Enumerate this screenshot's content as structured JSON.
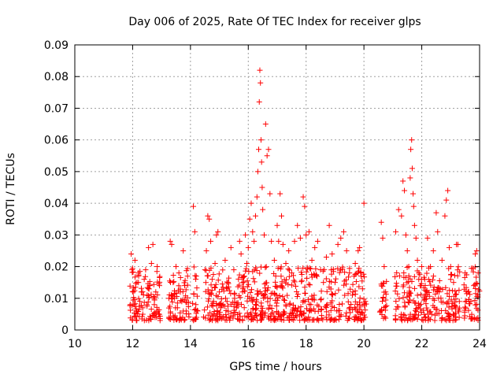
{
  "chart_data": {
    "type": "scatter",
    "title": "Day 006 of 2025, Rate Of TEC Index for receiver glps",
    "xlabel": "GPS time / hours",
    "ylabel": "ROTI / TECUs",
    "xlim": [
      10,
      24
    ],
    "ylim": [
      0,
      0.09
    ],
    "xticks": [
      10,
      12,
      14,
      16,
      18,
      20,
      22,
      24
    ],
    "yticks": [
      0,
      0.01,
      0.02,
      0.03,
      0.04,
      0.05,
      0.06,
      0.07,
      0.08,
      0.09
    ],
    "grid": true,
    "marker": "+",
    "marker_color": "#ff0000",
    "series": [
      {
        "name": "ROTI",
        "points": [
          [
            11.95,
            0.024
          ],
          [
            11.98,
            0.019
          ],
          [
            12.02,
            0.012
          ],
          [
            12.05,
            0.008
          ],
          [
            12.08,
            0.022
          ],
          [
            12.12,
            0.006
          ],
          [
            12.15,
            0.015
          ],
          [
            12.2,
            0.018
          ],
          [
            12.25,
            0.009
          ],
          [
            12.3,
            0.012
          ],
          [
            12.35,
            0.007
          ],
          [
            12.4,
            0.016
          ],
          [
            12.45,
            0.019
          ],
          [
            12.5,
            0.011
          ],
          [
            12.55,
            0.026
          ],
          [
            12.6,
            0.014
          ],
          [
            12.65,
            0.021
          ],
          [
            12.7,
            0.027
          ],
          [
            12.75,
            0.008
          ],
          [
            12.8,
            0.012
          ],
          [
            12.85,
            0.02
          ],
          [
            12.9,
            0.005
          ],
          [
            13.3,
            0.028
          ],
          [
            13.35,
            0.027
          ],
          [
            13.4,
            0.015
          ],
          [
            13.45,
            0.01
          ],
          [
            13.5,
            0.02
          ],
          [
            13.55,
            0.007
          ],
          [
            13.6,
            0.018
          ],
          [
            13.65,
            0.012
          ],
          [
            13.7,
            0.009
          ],
          [
            13.75,
            0.025
          ],
          [
            13.8,
            0.014
          ],
          [
            13.85,
            0.006
          ],
          [
            13.9,
            0.017
          ],
          [
            14.1,
            0.039
          ],
          [
            14.15,
            0.031
          ],
          [
            14.2,
            0.017
          ],
          [
            14.25,
            0.006
          ],
          [
            14.5,
            0.019
          ],
          [
            14.55,
            0.025
          ],
          [
            14.6,
            0.036
          ],
          [
            14.65,
            0.035
          ],
          [
            14.7,
            0.028
          ],
          [
            14.75,
            0.016
          ],
          [
            14.8,
            0.009
          ],
          [
            14.85,
            0.021
          ],
          [
            14.9,
            0.03
          ],
          [
            14.95,
            0.031
          ],
          [
            15.0,
            0.012
          ],
          [
            15.05,
            0.007
          ],
          [
            15.2,
            0.022
          ],
          [
            15.3,
            0.015
          ],
          [
            15.4,
            0.026
          ],
          [
            15.5,
            0.019
          ],
          [
            15.6,
            0.008
          ],
          [
            15.7,
            0.028
          ],
          [
            15.75,
            0.024
          ],
          [
            15.8,
            0.012
          ],
          [
            15.9,
            0.03
          ],
          [
            15.95,
            0.021
          ],
          [
            16.0,
            0.026
          ],
          [
            16.05,
            0.035
          ],
          [
            16.1,
            0.04
          ],
          [
            16.15,
            0.031
          ],
          [
            16.2,
            0.028
          ],
          [
            16.25,
            0.036
          ],
          [
            16.3,
            0.042
          ],
          [
            16.33,
            0.05
          ],
          [
            16.36,
            0.057
          ],
          [
            16.38,
            0.072
          ],
          [
            16.4,
            0.082
          ],
          [
            16.42,
            0.078
          ],
          [
            16.44,
            0.06
          ],
          [
            16.46,
            0.053
          ],
          [
            16.48,
            0.045
          ],
          [
            16.5,
            0.038
          ],
          [
            16.55,
            0.03
          ],
          [
            16.6,
            0.065
          ],
          [
            16.65,
            0.055
          ],
          [
            16.7,
            0.057
          ],
          [
            16.75,
            0.043
          ],
          [
            16.8,
            0.028
          ],
          [
            16.9,
            0.022
          ],
          [
            16.95,
            0.017
          ],
          [
            17.0,
            0.033
          ],
          [
            17.05,
            0.028
          ],
          [
            17.1,
            0.043
          ],
          [
            17.15,
            0.036
          ],
          [
            17.2,
            0.027
          ],
          [
            17.3,
            0.021
          ],
          [
            17.4,
            0.025
          ],
          [
            17.5,
            0.018
          ],
          [
            17.6,
            0.028
          ],
          [
            17.7,
            0.033
          ],
          [
            17.8,
            0.029
          ],
          [
            17.9,
            0.042
          ],
          [
            17.95,
            0.039
          ],
          [
            18.0,
            0.03
          ],
          [
            18.1,
            0.031
          ],
          [
            18.2,
            0.022
          ],
          [
            18.3,
            0.026
          ],
          [
            18.4,
            0.028
          ],
          [
            18.5,
            0.019
          ],
          [
            18.6,
            0.015
          ],
          [
            18.7,
            0.023
          ],
          [
            18.8,
            0.033
          ],
          [
            18.9,
            0.024
          ],
          [
            19.0,
            0.015
          ],
          [
            19.1,
            0.027
          ],
          [
            19.2,
            0.029
          ],
          [
            19.3,
            0.031
          ],
          [
            19.4,
            0.025
          ],
          [
            19.5,
            0.018
          ],
          [
            19.6,
            0.011
          ],
          [
            19.7,
            0.021
          ],
          [
            19.8,
            0.025
          ],
          [
            19.85,
            0.026
          ],
          [
            19.9,
            0.017
          ],
          [
            19.95,
            0.013
          ],
          [
            20.0,
            0.04
          ],
          [
            20.05,
            0.009
          ],
          [
            20.6,
            0.034
          ],
          [
            20.65,
            0.029
          ],
          [
            20.7,
            0.02
          ],
          [
            20.75,
            0.012
          ],
          [
            21.1,
            0.031
          ],
          [
            21.2,
            0.038
          ],
          [
            21.3,
            0.036
          ],
          [
            21.35,
            0.047
          ],
          [
            21.4,
            0.044
          ],
          [
            21.45,
            0.03
          ],
          [
            21.5,
            0.025
          ],
          [
            21.55,
            0.02
          ],
          [
            21.6,
            0.048
          ],
          [
            21.62,
            0.057
          ],
          [
            21.65,
            0.06
          ],
          [
            21.67,
            0.051
          ],
          [
            21.7,
            0.043
          ],
          [
            21.72,
            0.039
          ],
          [
            21.75,
            0.033
          ],
          [
            21.8,
            0.029
          ],
          [
            21.85,
            0.022
          ],
          [
            21.9,
            0.018
          ],
          [
            21.95,
            0.014
          ],
          [
            22.0,
            0.02
          ],
          [
            22.1,
            0.016
          ],
          [
            22.2,
            0.029
          ],
          [
            22.3,
            0.02
          ],
          [
            22.4,
            0.025
          ],
          [
            22.5,
            0.037
          ],
          [
            22.55,
            0.031
          ],
          [
            22.6,
            0.012
          ],
          [
            22.7,
            0.022
          ],
          [
            22.8,
            0.036
          ],
          [
            22.85,
            0.041
          ],
          [
            22.9,
            0.044
          ],
          [
            22.95,
            0.026
          ],
          [
            23.0,
            0.02
          ],
          [
            23.1,
            0.015
          ],
          [
            23.2,
            0.027
          ],
          [
            23.25,
            0.027
          ],
          [
            23.3,
            0.009
          ],
          [
            23.5,
            0.018
          ],
          [
            23.6,
            0.012
          ],
          [
            23.7,
            0.009
          ],
          [
            23.8,
            0.014
          ],
          [
            23.85,
            0.024
          ],
          [
            23.9,
            0.025
          ],
          [
            23.95,
            0.018
          ]
        ]
      }
    ]
  }
}
